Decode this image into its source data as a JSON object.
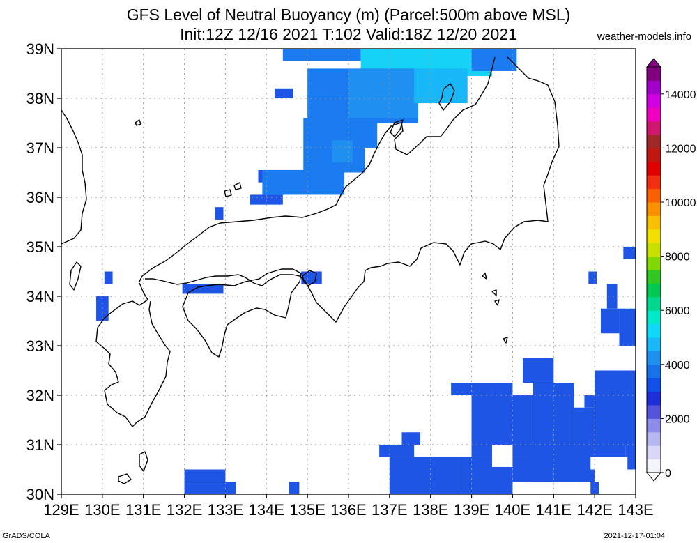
{
  "header": {
    "title_line1": "GFS Level of Neutral Buoyancy (m) (Parcel:500m above MSL)",
    "title_line2": "Init:12Z 12/16 2021 T:102 Valid:18Z 12/20 2021",
    "site": "weather-models.info"
  },
  "footer": {
    "left": "GrADS/COLA",
    "right": "2021-12-17-01:04"
  },
  "map": {
    "lon_labels": [
      "129E",
      "130E",
      "131E",
      "132E",
      "133E",
      "134E",
      "135E",
      "136E",
      "137E",
      "138E",
      "139E",
      "140E",
      "141E",
      "142E",
      "143E"
    ],
    "lat_labels": [
      "39N",
      "38N",
      "37N",
      "36N",
      "35N",
      "34N",
      "33N",
      "32N",
      "31N",
      "30N"
    ],
    "lon_range": [
      129,
      143
    ],
    "lat_range": [
      30,
      39
    ],
    "grid": true,
    "coastline_color": "#000000"
  },
  "colorbar": {
    "labels": [
      "14000",
      "12000",
      "10000",
      "8000",
      "6000",
      "4000",
      "2000",
      "0"
    ],
    "range": [
      0,
      15000
    ],
    "colors": [
      "#f4f4fc",
      "#d8d8f6",
      "#b6b6f0",
      "#8c8ce8",
      "#5555dc",
      "#1f2fd8",
      "#1050e8",
      "#1673ea",
      "#1f90f0",
      "#18b8f8",
      "#10d8f8",
      "#00e8c8",
      "#00d890",
      "#00c850",
      "#30c820",
      "#80d800",
      "#c8e000",
      "#f0e000",
      "#f8c000",
      "#f89000",
      "#f86000",
      "#f03010",
      "#e00000",
      "#c01810",
      "#a02828",
      "#d01870",
      "#f000c0",
      "#d000e0",
      "#a000c8",
      "#800080"
    ]
  },
  "blocks": [
    {
      "lon": [
        134.4,
        136.3
      ],
      "lat": [
        38.75,
        39.0
      ],
      "color": "#1a7cf0"
    },
    {
      "lon": [
        136.3,
        139.5
      ],
      "lat": [
        38.45,
        39.0
      ],
      "color": "#16d2f6"
    },
    {
      "lon": [
        139.0,
        140.1
      ],
      "lat": [
        38.55,
        39.0
      ],
      "color": "#1a7cf0"
    },
    {
      "lon": [
        134.2,
        134.65
      ],
      "lat": [
        38.0,
        38.2
      ],
      "color": "#1f55e5"
    },
    {
      "lon": [
        135.0,
        137.7
      ],
      "lat": [
        37.5,
        38.6
      ],
      "color": "#1a7cf0"
    },
    {
      "lon": [
        136.0,
        137.7
      ],
      "lat": [
        37.6,
        38.6
      ],
      "color": "#1f90f0"
    },
    {
      "lon": [
        137.6,
        138.9
      ],
      "lat": [
        37.9,
        38.6
      ],
      "color": "#18b8f8"
    },
    {
      "lon": [
        134.9,
        136.7
      ],
      "lat": [
        37.0,
        37.6
      ],
      "color": "#1a7cf0"
    },
    {
      "lon": [
        134.9,
        136.4
      ],
      "lat": [
        36.5,
        37.0
      ],
      "color": "#1a7cf0"
    },
    {
      "lon": [
        135.6,
        136.1
      ],
      "lat": [
        36.7,
        37.15
      ],
      "color": "#1f90f0"
    },
    {
      "lon": [
        133.8,
        135.1
      ],
      "lat": [
        36.3,
        36.55
      ],
      "color": "#1f55e5"
    },
    {
      "lon": [
        133.9,
        135.9
      ],
      "lat": [
        36.05,
        36.55
      ],
      "color": "#1a7cf0"
    },
    {
      "lon": [
        133.6,
        134.4
      ],
      "lat": [
        35.85,
        36.05
      ],
      "color": "#1f55e5"
    },
    {
      "lon": [
        132.75,
        132.95
      ],
      "lat": [
        35.55,
        35.8
      ],
      "color": "#1f55e5"
    },
    {
      "lon": [
        130.05,
        130.25
      ],
      "lat": [
        34.25,
        34.5
      ],
      "color": "#1f55e5"
    },
    {
      "lon": [
        131.95,
        132.95
      ],
      "lat": [
        34.05,
        34.25
      ],
      "color": "#1f55e5"
    },
    {
      "lon": [
        134.85,
        135.35
      ],
      "lat": [
        34.25,
        34.5
      ],
      "color": "#1f55e5"
    },
    {
      "lon": [
        129.85,
        130.15
      ],
      "lat": [
        33.5,
        34.0
      ],
      "color": "#1f55e5"
    },
    {
      "lon": [
        141.85,
        142.05
      ],
      "lat": [
        34.25,
        34.5
      ],
      "color": "#1f55e5"
    },
    {
      "lon": [
        142.7,
        143.0
      ],
      "lat": [
        34.75,
        35.0
      ],
      "color": "#1f55e5"
    },
    {
      "lon": [
        142.6,
        143.0
      ],
      "lat": [
        33.0,
        33.75
      ],
      "color": "#1f55e5"
    },
    {
      "lon": [
        142.15,
        142.6
      ],
      "lat": [
        33.25,
        33.75
      ],
      "color": "#1f55e5"
    },
    {
      "lon": [
        142.3,
        142.55
      ],
      "lat": [
        33.75,
        34.25
      ],
      "color": "#1f55e5"
    },
    {
      "lon": [
        138.5,
        140.0
      ],
      "lat": [
        32.0,
        32.25
      ],
      "color": "#1f55e5"
    },
    {
      "lon": [
        140.25,
        141.0
      ],
      "lat": [
        32.25,
        32.75
      ],
      "color": "#1f55e5"
    },
    {
      "lon": [
        139.0,
        140.5
      ],
      "lat": [
        31.0,
        32.0
      ],
      "color": "#1f55e5"
    },
    {
      "lon": [
        140.5,
        141.5
      ],
      "lat": [
        31.0,
        32.25
      ],
      "color": "#1f55e5"
    },
    {
      "lon": [
        141.5,
        142.0
      ],
      "lat": [
        31.0,
        31.75
      ],
      "color": "#1f55e5"
    },
    {
      "lon": [
        142.0,
        143.0
      ],
      "lat": [
        31.0,
        32.5
      ],
      "color": "#1f55e5"
    },
    {
      "lon": [
        141.75,
        142.0
      ],
      "lat": [
        31.75,
        32.0
      ],
      "color": "#1f55e5"
    },
    {
      "lon": [
        139.0,
        142.75
      ],
      "lat": [
        30.75,
        31.0
      ],
      "color": "#1f55e5"
    },
    {
      "lon": [
        142.75,
        143.0
      ],
      "lat": [
        30.5,
        31.0
      ],
      "color": "#1f55e5"
    },
    {
      "lon": [
        136.75,
        137.6
      ],
      "lat": [
        30.75,
        31.0
      ],
      "color": "#1f55e5"
    },
    {
      "lon": [
        137.0,
        138.75
      ],
      "lat": [
        30.0,
        30.75
      ],
      "color": "#1f55e5"
    },
    {
      "lon": [
        137.3,
        137.75
      ],
      "lat": [
        31.0,
        31.25
      ],
      "color": "#1f55e5"
    },
    {
      "lon": [
        138.75,
        140.0
      ],
      "lat": [
        30.0,
        30.75
      ],
      "color": "#1f55e5"
    },
    {
      "lon": [
        140.0,
        141.0
      ],
      "lat": [
        30.25,
        30.75
      ],
      "color": "#1f55e5"
    },
    {
      "lon": [
        140.5,
        142.0
      ],
      "lat": [
        30.25,
        31.0
      ],
      "color": "#1f55e5"
    },
    {
      "lon": [
        141.9,
        142.1
      ],
      "lat": [
        30.0,
        30.25
      ],
      "color": "#1f55e5"
    },
    {
      "lon": [
        132.0,
        133.0
      ],
      "lat": [
        30.25,
        30.5
      ],
      "color": "#1f55e5"
    },
    {
      "lon": [
        132.0,
        133.25
      ],
      "lat": [
        30.0,
        30.25
      ],
      "color": "#1f55e5"
    },
    {
      "lon": [
        134.55,
        134.8
      ],
      "lat": [
        30.0,
        30.25
      ],
      "color": "#1f55e5"
    }
  ],
  "gaps": [
    {
      "lon": [
        139.5,
        140.0
      ],
      "lat": [
        30.55,
        31.0
      ]
    },
    {
      "lon": [
        141.9,
        142.8
      ],
      "lat": [
        30.5,
        30.75
      ]
    }
  ]
}
